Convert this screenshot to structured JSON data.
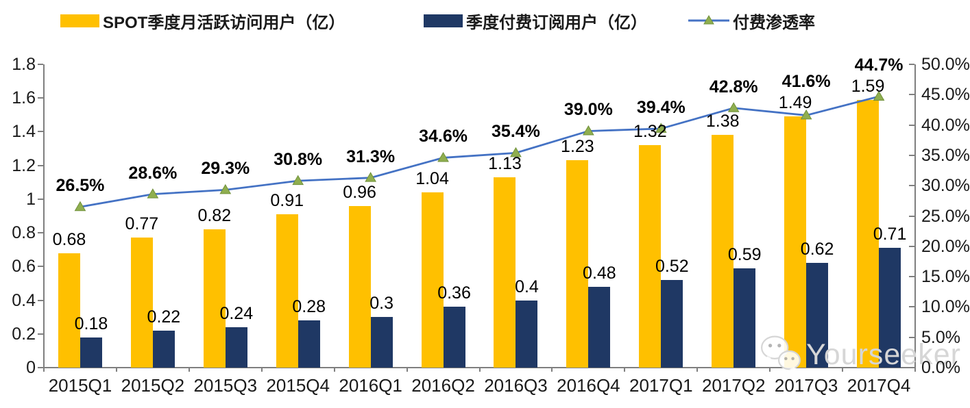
{
  "chart_data": {
    "type": "bar",
    "subtype": "bar-line-combo",
    "categories": [
      "2015Q1",
      "2015Q2",
      "2015Q3",
      "2015Q4",
      "2016Q1",
      "2016Q2",
      "2016Q3",
      "2016Q4",
      "2017Q1",
      "2017Q2",
      "2017Q3",
      "2017Q4"
    ],
    "series": [
      {
        "name": "SPOT季度月活跃访问用户（亿）",
        "chart_type": "bar",
        "axis": "left",
        "color": "#FFC000",
        "values": [
          0.68,
          0.77,
          0.82,
          0.91,
          0.96,
          1.04,
          1.13,
          1.23,
          1.32,
          1.38,
          1.49,
          1.59
        ],
        "labels": [
          "0.68",
          "0.77",
          "0.82",
          "0.91",
          "0.96",
          "1.04",
          "1.13",
          "1.23",
          "1.32",
          "1.38",
          "1.49",
          "1.59"
        ]
      },
      {
        "name": "季度付费订阅用户（亿）",
        "chart_type": "bar",
        "axis": "left",
        "color": "#1F3864",
        "values": [
          0.18,
          0.22,
          0.24,
          0.28,
          0.3,
          0.36,
          0.4,
          0.48,
          0.52,
          0.59,
          0.62,
          0.71
        ],
        "labels": [
          "0.18",
          "0.22",
          "0.24",
          "0.28",
          "0.3",
          "0.36",
          "0.4",
          "0.48",
          "0.52",
          "0.59",
          "0.62",
          "0.71"
        ]
      },
      {
        "name": "付费渗透率",
        "chart_type": "line",
        "axis": "right",
        "color": "#4472C4",
        "marker": "triangle",
        "marker_color": "#8FAE4F",
        "values": [
          26.5,
          28.6,
          29.3,
          30.8,
          31.3,
          34.6,
          35.4,
          39.0,
          39.4,
          42.8,
          41.6,
          44.7
        ],
        "labels": [
          "26.5%",
          "28.6%",
          "29.3%",
          "30.8%",
          "31.3%",
          "34.6%",
          "35.4%",
          "39.0%",
          "39.4%",
          "42.8%",
          "41.6%",
          "44.7%"
        ]
      }
    ],
    "left_axis": {
      "min": 0,
      "max": 1.8,
      "step": 0.2,
      "tick_labels": [
        "0",
        "0.2",
        "0.4",
        "0.6",
        "0.8",
        "1",
        "1.2",
        "1.4",
        "1.6",
        "1.8"
      ]
    },
    "right_axis": {
      "min": 0,
      "max": 50,
      "step": 5,
      "tick_labels": [
        "0.0%",
        "5.0%",
        "10.0%",
        "15.0%",
        "20.0%",
        "25.0%",
        "30.0%",
        "35.0%",
        "40.0%",
        "45.0%",
        "50.0%"
      ]
    },
    "grid": false,
    "legend_position": "top",
    "axis_color": "#7f7f7f"
  },
  "watermark": {
    "text": "Yourseeker",
    "icon": "wechat-chat-bubbles-icon"
  }
}
